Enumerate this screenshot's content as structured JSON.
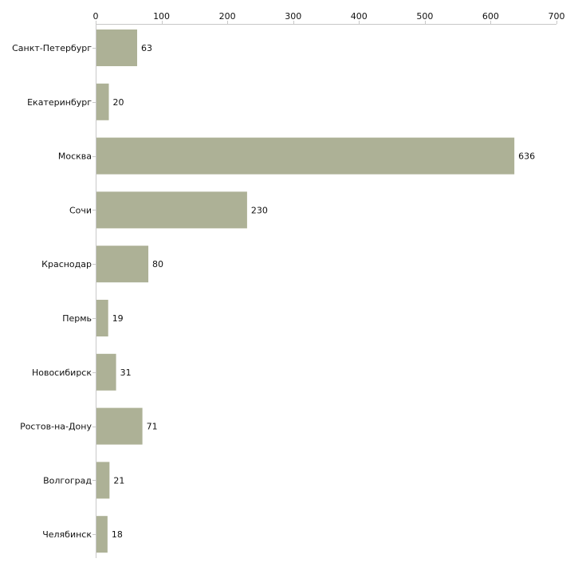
{
  "chart_data": {
    "type": "bar",
    "orientation": "horizontal",
    "title": "",
    "xlabel": "",
    "ylabel": "",
    "categories": [
      "Санкт-Петербург",
      "Екатеринбург",
      "Москва",
      "Сочи",
      "Краснодар",
      "Пермь",
      "Новосибирск",
      "Ростов-на-Дону",
      "Волгоград",
      "Челябинск"
    ],
    "values": [
      63,
      20,
      636,
      230,
      80,
      19,
      31,
      71,
      21,
      18
    ],
    "xlim": [
      0,
      700
    ],
    "xticks": [
      0,
      100,
      200,
      300,
      400,
      500,
      600,
      700
    ],
    "axis_position": "top",
    "grid": false,
    "legend": "none",
    "bar_color": "#adb196",
    "axis_color": "#c8c8c8",
    "text_color": "#111111"
  }
}
